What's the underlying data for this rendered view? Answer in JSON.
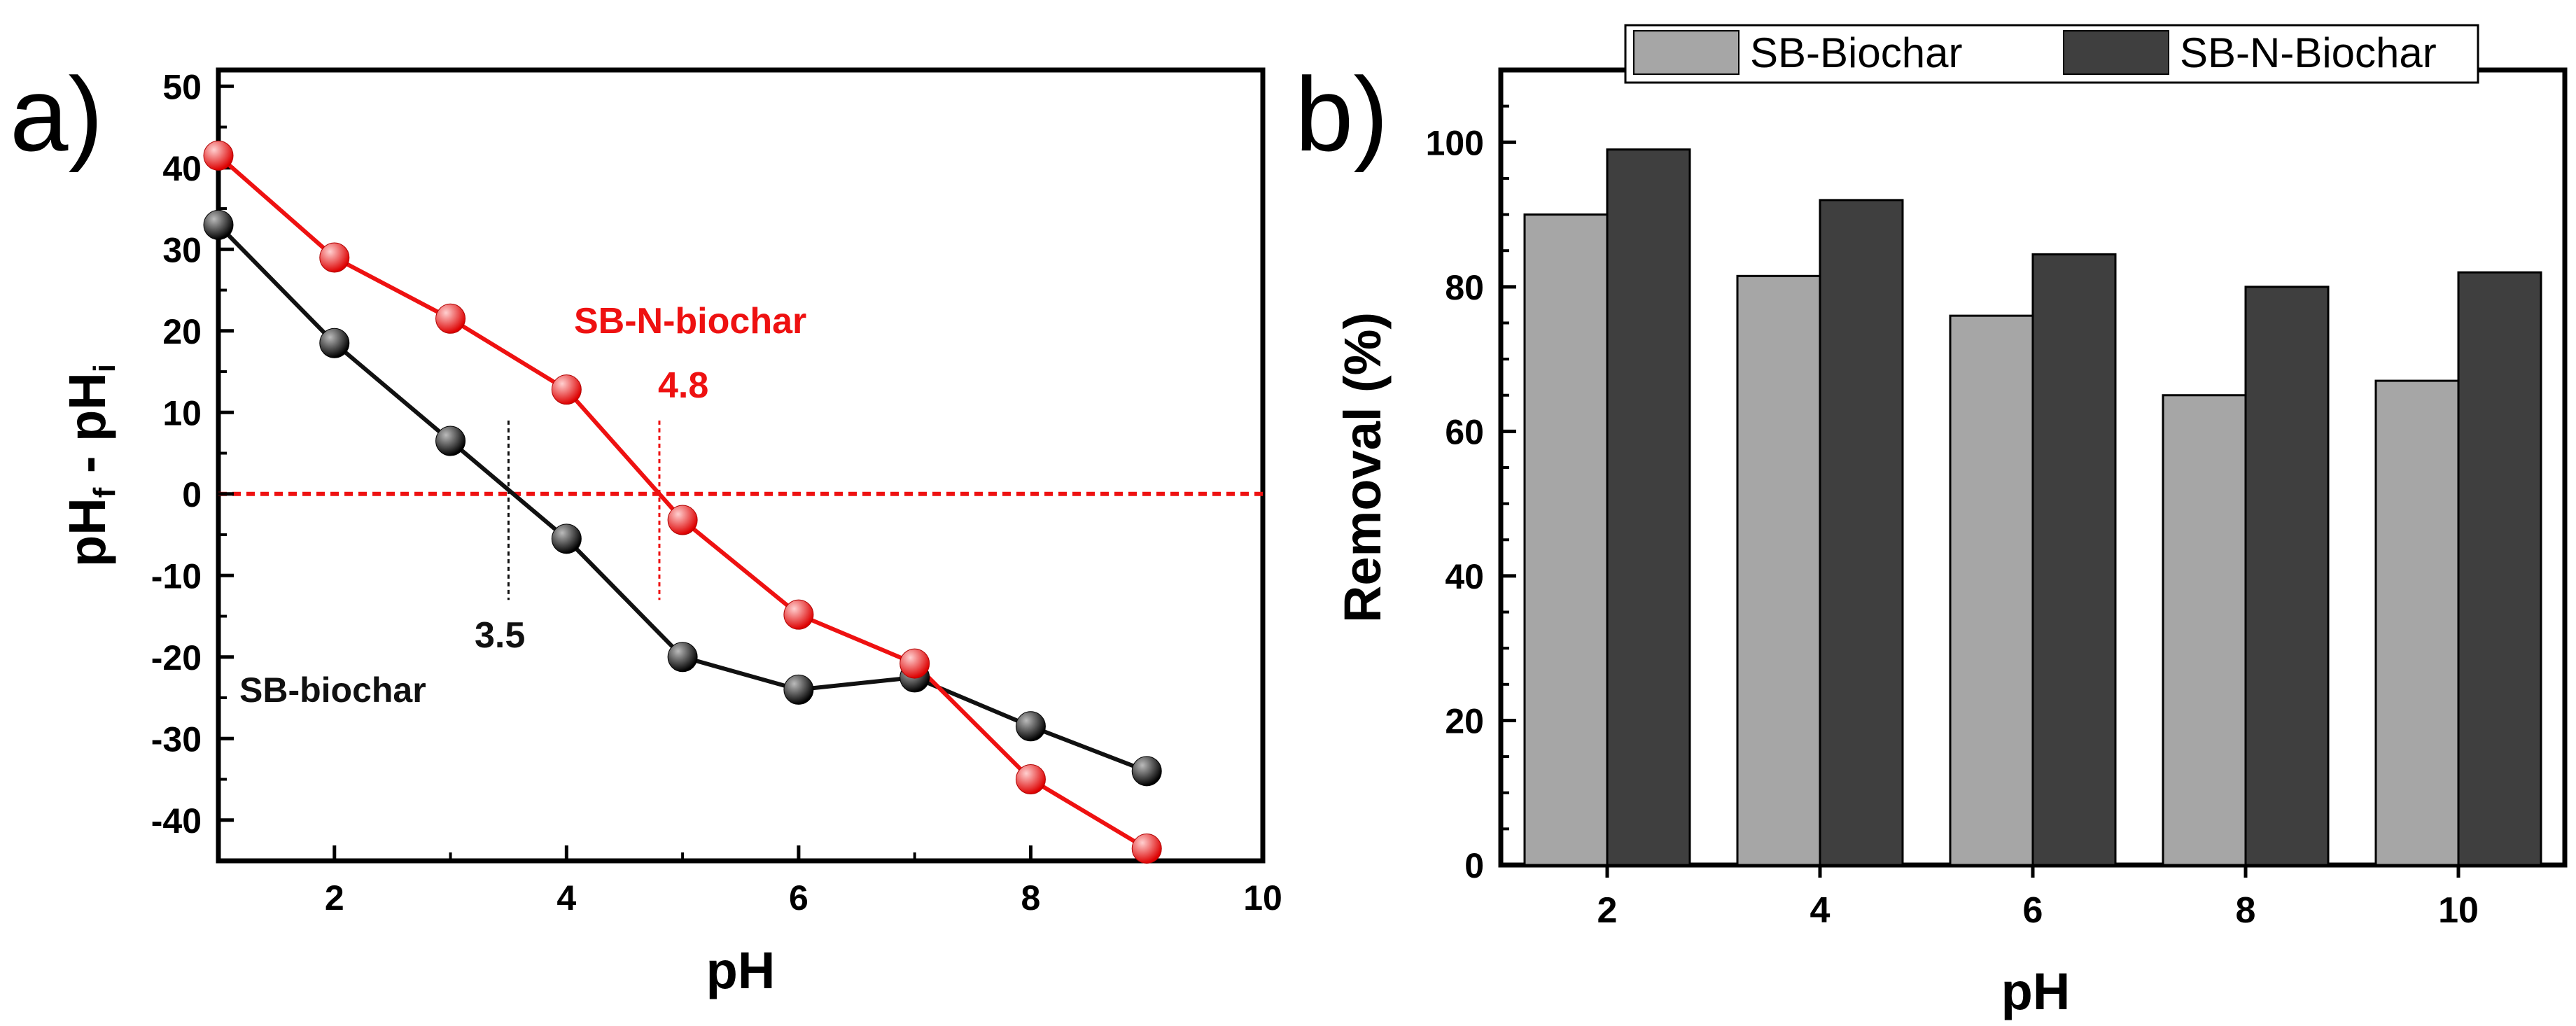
{
  "panel_a": {
    "label": "a)",
    "chart_data": {
      "type": "line",
      "xlabel": "pH",
      "ylabel_parts": [
        "pH",
        "f",
        " - pH",
        "i"
      ],
      "xlim": [
        1,
        10
      ],
      "ylim": [
        -45,
        52
      ],
      "xticks": [
        2,
        4,
        6,
        8,
        10
      ],
      "yticks": [
        -40,
        -30,
        -20,
        -10,
        0,
        10,
        20,
        30,
        40,
        50
      ],
      "series": [
        {
          "name": "SB-biochar",
          "color": "#111111",
          "x": [
            1,
            2,
            3,
            4,
            5,
            6,
            7,
            8,
            9
          ],
          "y": [
            33,
            18.5,
            6.5,
            -5.5,
            -20,
            -24,
            -22.5,
            -28.5,
            -34
          ]
        },
        {
          "name": "SB-N-biochar",
          "color": "#ee1111",
          "x": [
            1,
            2,
            3,
            4,
            5,
            6,
            7,
            8,
            9
          ],
          "y": [
            41.5,
            29,
            21.5,
            12.8,
            -3.2,
            -14.8,
            -20.8,
            -35,
            -43.5
          ]
        }
      ],
      "annotations": [
        {
          "text": "SB-N-biochar",
          "color": "#ee1111"
        },
        {
          "text": "4.8",
          "x": 4.8,
          "color": "#ee1111"
        },
        {
          "text": "3.5",
          "x": 3.5,
          "color": "#111111"
        },
        {
          "text": "SB-biochar",
          "color": "#111111"
        }
      ],
      "reference_line_y": 0
    }
  },
  "panel_b": {
    "label": "b)",
    "chart_data": {
      "type": "bar",
      "xlabel": "pH",
      "ylabel": "Removal (%)",
      "ylim": [
        0,
        110
      ],
      "yticks": [
        0,
        20,
        40,
        60,
        80,
        100
      ],
      "categories": [
        "2",
        "4",
        "6",
        "8",
        "10"
      ],
      "legend_position": "top",
      "series": [
        {
          "name": "SB-Biochar",
          "color": "#a6a6a6",
          "values": [
            90,
            81.5,
            76,
            65,
            67
          ]
        },
        {
          "name": "SB-N-Biochar",
          "color": "#3f3f3f",
          "values": [
            99,
            92,
            84.5,
            80,
            82
          ]
        }
      ]
    }
  }
}
